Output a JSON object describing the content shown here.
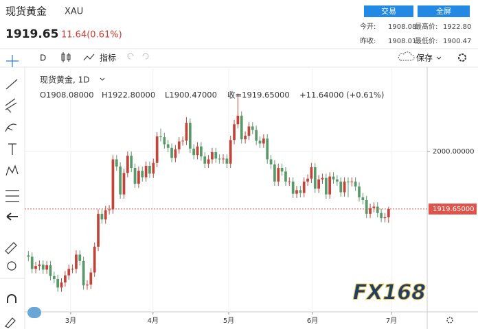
{
  "header": {
    "title": "现货黄金",
    "symbol": "XAU",
    "price": "1919.65",
    "change": "11.64(0.61%)",
    "buttons": [
      "交易",
      "全屏"
    ],
    "stats": [
      [
        "今开:",
        "1908.08"
      ],
      [
        "最高价:",
        "1922.80"
      ],
      [
        "昨收:",
        "1908.01"
      ],
      [
        "最低价:",
        "1900.47"
      ]
    ]
  },
  "toolbar": {
    "interval": "D",
    "indicators": "指标",
    "save": "保存"
  },
  "legend": {
    "name": "现货黄金, 1D",
    "open": "O1908.08000",
    "high": "H1922.80000",
    "low": "L1900.47000",
    "close": "收=1919.65000",
    "change": "+11.64000 (+0.61%)"
  },
  "watermark": "FX168",
  "chart_data": {
    "type": "candlestick",
    "up_color": "#c0463c",
    "down_color": "#5a9a6a",
    "xlim": [
      -1,
      108.5
    ],
    "xticks": [
      {
        "value": 11.5,
        "label": "3月"
      },
      {
        "value": 33.9,
        "label": "4月"
      },
      {
        "value": 54.5,
        "label": "5月"
      },
      {
        "value": 77.3,
        "label": "6月"
      },
      {
        "value": 98.8,
        "label": "7月"
      }
    ],
    "ylim": [
      1776,
      2115.8
    ],
    "yticks": [
      {
        "value": 2000,
        "label": "2000.00000"
      }
    ],
    "last_price": {
      "value": 1919.65,
      "label": "1919.65000"
    },
    "open": [
      1855,
      1853,
      1836,
      1840,
      1842,
      1835,
      1841,
      1826,
      1822,
      1810,
      1817,
      1827,
      1836,
      1836,
      1856,
      1847,
      1813,
      1814,
      1831,
      1867,
      1913,
      1905,
      1918,
      1919,
      1989,
      1979,
      1940,
      1970,
      1994,
      1977,
      1955,
      1973,
      1964,
      1980,
      1969,
      1984,
      2021,
      2020,
      2010,
      2005,
      1991,
      2003,
      2014,
      2015,
      2040,
      2004,
      1995,
      2007,
      1993,
      1983,
      1989,
      1999,
      1990,
      1989,
      1990,
      1983,
      2016,
      2038,
      2050,
      2017,
      2022,
      2035,
      2030,
      2015,
      2011,
      2018,
      1989,
      1982,
      1958,
      1977,
      1972,
      1958,
      1958,
      1941,
      1946,
      1942,
      1958,
      1962,
      1978,
      1948,
      1961,
      1963,
      1940,
      1965,
      1961,
      1958,
      1943,
      1958,
      1957,
      1958,
      1951,
      1936,
      1932,
      1913,
      1921,
      1923,
      1914,
      1907,
      1908.08
    ],
    "high": [
      1861,
      1859,
      1846,
      1848,
      1848,
      1847,
      1847,
      1832,
      1828,
      1823,
      1833,
      1842,
      1842,
      1862,
      1862,
      1853,
      1820,
      1837,
      1873,
      1919,
      1919,
      1924,
      1925,
      1995,
      1995,
      1985,
      1976,
      2000,
      2000,
      1983,
      1979,
      1979,
      1986,
      1986,
      1990,
      2027,
      2032,
      2026,
      2016,
      2011,
      2009,
      2020,
      2021,
      2048,
      2046,
      2010,
      2013,
      2013,
      1999,
      1995,
      2005,
      2005,
      1996,
      1996,
      1996,
      2022,
      2044,
      2081,
      2056,
      2028,
      2041,
      2041,
      2036,
      2021,
      2024,
      2024,
      1995,
      1988,
      1983,
      1983,
      1978,
      1964,
      1964,
      1952,
      1952,
      1964,
      1968,
      1984,
      1984,
      1967,
      1969,
      1969,
      1971,
      1971,
      1967,
      1964,
      1964,
      1964,
      1964,
      1964,
      1957,
      1942,
      1938,
      1927,
      1929,
      1929,
      1920,
      1914,
      1922.8
    ],
    "low": [
      1847,
      1830,
      1830,
      1834,
      1829,
      1829,
      1820,
      1816,
      1804,
      1804,
      1811,
      1821,
      1830,
      1830,
      1841,
      1807,
      1807,
      1808,
      1825,
      1861,
      1899,
      1899,
      1912,
      1913,
      1973,
      1934,
      1934,
      1964,
      1971,
      1949,
      1949,
      1958,
      1958,
      1963,
      1963,
      1978,
      2014,
      2004,
      1999,
      1985,
      1985,
      1997,
      2008,
      2009,
      1998,
      1989,
      1989,
      1987,
      1977,
      1977,
      1983,
      1984,
      1983,
      1983,
      1977,
      1977,
      2010,
      2032,
      2011,
      2011,
      2016,
      2024,
      2009,
      2005,
      2005,
      1983,
      1976,
      1952,
      1952,
      1966,
      1952,
      1952,
      1935,
      1935,
      1936,
      1936,
      1952,
      1956,
      1942,
      1942,
      1955,
      1934,
      1934,
      1955,
      1952,
      1937,
      1937,
      1936,
      1951,
      1945,
      1930,
      1926,
      1907,
      1907,
      1915,
      1908,
      1901,
      1901,
      1900.47
    ],
    "close": [
      1853,
      1836,
      1840,
      1842,
      1835,
      1841,
      1826,
      1822,
      1810,
      1817,
      1827,
      1836,
      1836,
      1856,
      1847,
      1813,
      1814,
      1831,
      1867,
      1913,
      1905,
      1918,
      1919,
      1989,
      1979,
      1940,
      1970,
      1994,
      1977,
      1955,
      1973,
      1964,
      1980,
      1969,
      1984,
      2021,
      2020,
      2010,
      2005,
      1991,
      2003,
      2014,
      2015,
      2040,
      2004,
      1995,
      2007,
      1993,
      1983,
      1989,
      1999,
      1990,
      1989,
      1990,
      1983,
      2016,
      2038,
      2050,
      2017,
      2022,
      2035,
      2030,
      2015,
      2011,
      2018,
      1989,
      1982,
      1958,
      1977,
      1972,
      1958,
      1958,
      1941,
      1946,
      1942,
      1958,
      1962,
      1978,
      1948,
      1961,
      1963,
      1940,
      1965,
      1961,
      1958,
      1943,
      1958,
      1957,
      1958,
      1951,
      1936,
      1932,
      1913,
      1921,
      1923,
      1914,
      1907,
      1908.01,
      1919.65
    ]
  }
}
